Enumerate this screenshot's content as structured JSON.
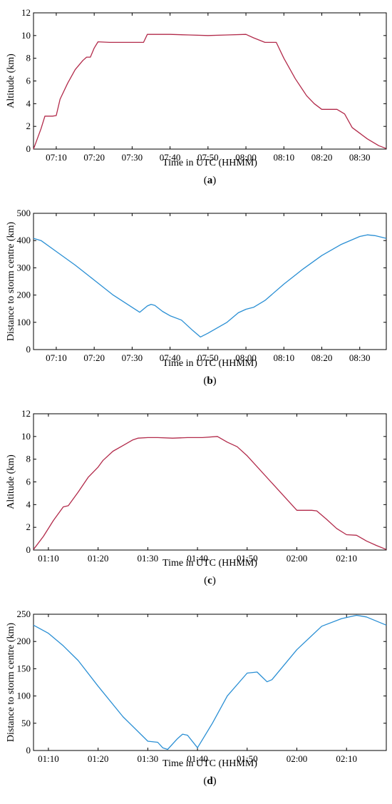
{
  "chart_data": [
    {
      "type": "line",
      "panel_label": "(a)",
      "xlabel": "Time in UTC (HHMM)",
      "ylabel": "Altitude (km)",
      "xlim": [
        "07:04",
        "08:37"
      ],
      "ylim": [
        0,
        12
      ],
      "x_ticks": [
        "07:10",
        "07:20",
        "07:30",
        "07:40",
        "07:50",
        "08:00",
        "08:10",
        "08:20",
        "08:30"
      ],
      "y_ticks": [
        0,
        2,
        4,
        6,
        8,
        10,
        12
      ],
      "grid": false,
      "color": "#b22a4a",
      "x": [
        "07:04",
        "07:05",
        "07:06",
        "07:07",
        "07:09",
        "07:10",
        "07:11",
        "07:13",
        "07:15",
        "07:17",
        "07:18",
        "07:19",
        "07:20",
        "07:21",
        "07:24",
        "07:27",
        "07:30",
        "07:33",
        "07:34",
        "07:40",
        "07:45",
        "07:50",
        "07:55",
        "08:00",
        "08:02",
        "08:05",
        "08:08",
        "08:10",
        "08:13",
        "08:16",
        "08:18",
        "08:20",
        "08:24",
        "08:26",
        "08:28",
        "08:30",
        "08:32",
        "08:35",
        "08:37"
      ],
      "values": [
        0,
        0.9,
        1.8,
        2.9,
        2.9,
        2.95,
        4.4,
        5.8,
        7.0,
        7.8,
        8.1,
        8.1,
        8.9,
        9.45,
        9.4,
        9.4,
        9.4,
        9.4,
        10.1,
        10.1,
        10.05,
        10.0,
        10.05,
        10.1,
        9.8,
        9.4,
        9.4,
        8.0,
        6.2,
        4.7,
        4.0,
        3.5,
        3.5,
        3.1,
        1.9,
        1.4,
        0.9,
        0.3,
        0.05
      ]
    },
    {
      "type": "line",
      "panel_label": "(b)",
      "xlabel": "Time in UTC (HHMM)",
      "ylabel": "Distance to storm centre (km)",
      "xlim": [
        "07:04",
        "08:37"
      ],
      "ylim": [
        0,
        500
      ],
      "x_ticks": [
        "07:10",
        "07:20",
        "07:30",
        "07:40",
        "07:50",
        "08:00",
        "08:10",
        "08:20",
        "08:30"
      ],
      "y_ticks": [
        0,
        100,
        200,
        300,
        400,
        500
      ],
      "grid": false,
      "color": "#2a8fd4",
      "x": [
        "07:04",
        "07:06",
        "07:10",
        "07:15",
        "07:20",
        "07:25",
        "07:30",
        "07:32",
        "07:34",
        "07:35",
        "07:36",
        "07:38",
        "07:40",
        "07:43",
        "07:46",
        "07:48",
        "07:50",
        "07:55",
        "07:58",
        "08:00",
        "08:02",
        "08:05",
        "08:10",
        "08:15",
        "08:20",
        "08:25",
        "08:30",
        "08:32",
        "08:34",
        "08:37"
      ],
      "values": [
        408,
        400,
        360,
        310,
        255,
        200,
        155,
        137,
        160,
        166,
        162,
        140,
        124,
        108,
        70,
        46,
        60,
        100,
        135,
        148,
        155,
        180,
        240,
        295,
        345,
        385,
        415,
        421,
        418,
        408
      ]
    },
    {
      "type": "line",
      "panel_label": "(c)",
      "xlabel": "Time in UTC (HHMM)",
      "ylabel": "Altitude (km)",
      "xlim": [
        "01:07",
        "02:18"
      ],
      "ylim": [
        0,
        12
      ],
      "x_ticks": [
        "01:10",
        "01:20",
        "01:30",
        "01:40",
        "01:50",
        "02:00",
        "02:10"
      ],
      "y_ticks": [
        0,
        2,
        4,
        6,
        8,
        10,
        12
      ],
      "grid": false,
      "color": "#b22a4a",
      "x": [
        "01:07",
        "01:09",
        "01:11",
        "01:13",
        "01:14",
        "01:16",
        "01:18",
        "01:20",
        "01:21",
        "01:23",
        "01:25",
        "01:27",
        "01:28",
        "01:30",
        "01:32",
        "01:35",
        "01:38",
        "01:41",
        "01:44",
        "01:46",
        "01:48",
        "01:50",
        "01:55",
        "02:00",
        "02:03",
        "02:04",
        "02:06",
        "02:08",
        "02:10",
        "02:12",
        "02:14",
        "02:16",
        "02:18"
      ],
      "values": [
        0.05,
        1.2,
        2.6,
        3.8,
        3.9,
        5.1,
        6.4,
        7.3,
        7.9,
        8.7,
        9.2,
        9.7,
        9.85,
        9.9,
        9.9,
        9.85,
        9.9,
        9.9,
        10.0,
        9.5,
        9.1,
        8.3,
        5.9,
        3.5,
        3.5,
        3.45,
        2.7,
        1.9,
        1.35,
        1.3,
        0.8,
        0.4,
        0.05
      ]
    },
    {
      "type": "line",
      "panel_label": "(d)",
      "xlabel": "Time in UTC (HHMM)",
      "ylabel": "Distance to storm centre (km)",
      "xlim": [
        "01:07",
        "02:18"
      ],
      "ylim": [
        0,
        250
      ],
      "x_ticks": [
        "01:10",
        "01:20",
        "01:30",
        "01:40",
        "01:50",
        "02:00",
        "02:10"
      ],
      "y_ticks": [
        0,
        50,
        100,
        150,
        200,
        250
      ],
      "grid": false,
      "color": "#2a8fd4",
      "x": [
        "01:07",
        "01:10",
        "01:13",
        "01:16",
        "01:20",
        "01:25",
        "01:30",
        "01:32",
        "01:33",
        "01:34",
        "01:36",
        "01:37",
        "01:38",
        "01:40",
        "01:43",
        "01:46",
        "01:50",
        "01:52",
        "01:53",
        "01:54",
        "01:55",
        "02:00",
        "02:05",
        "02:09",
        "02:12",
        "02:14",
        "02:18"
      ],
      "values": [
        230,
        215,
        192,
        165,
        118,
        62,
        17,
        15,
        5,
        2,
        22,
        30,
        28,
        5,
        50,
        100,
        142,
        144,
        135,
        126,
        130,
        185,
        228,
        242,
        248,
        245,
        230
      ]
    }
  ]
}
